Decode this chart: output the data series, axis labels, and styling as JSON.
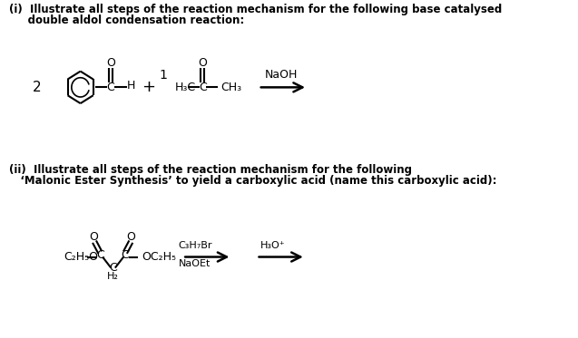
{
  "bg_color": "#ffffff",
  "fig_width": 6.37,
  "fig_height": 3.73,
  "dpi": 100,
  "text_color": "#000000",
  "line_color": "#000000",
  "part_i_line1": "(i)  Illustrate all steps of the reaction mechanism for the following base catalysed",
  "part_i_line2": "     double aldol condensation reaction:",
  "part_ii_line1": "(ii)  Illustrate all steps of the reaction mechanism for the following",
  "part_ii_line2": "   ‘Malonic Ester Synthesis’ to yield a carboxylic acid (name this carboxylic acid):",
  "naoh": "NaOH",
  "c3h7br": "C₃H₇Br",
  "naoet": "NaOEt",
  "h3oplus": "H₃O⁺"
}
